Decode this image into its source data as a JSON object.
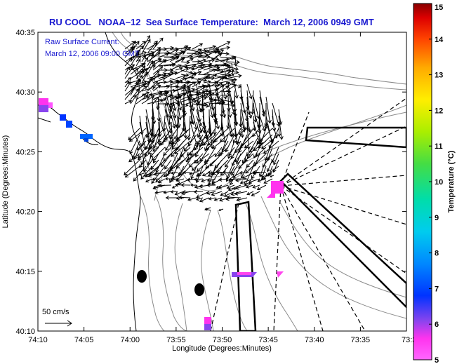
{
  "title": "RU COOL   NOAA–12  Sea Surface Temperature:  March 12, 2006 0949 GMT",
  "inset": {
    "line1": "Raw Surface Current:",
    "line2": "March 12, 2006 09:00 GMT"
  },
  "axes": {
    "xlabel": "Longitude (Degrees:Minutes)",
    "ylabel": "Latitude (Degrees:Minutes)",
    "x_ticks": [
      "74:10",
      "74:05",
      "74:00",
      "73:55",
      "73:50",
      "73:45",
      "73:40",
      "73:35",
      "73:3"
    ],
    "y_ticks": [
      "40:35",
      "40:30",
      "40:25",
      "40:20",
      "40:15",
      "40:10"
    ]
  },
  "scale_bar": {
    "label": "50 cm/s"
  },
  "colorbar": {
    "label": "Temperature (°C)",
    "min": 5,
    "max": 15,
    "ticks": [
      "5",
      "6",
      "7",
      "8",
      "9",
      "10",
      "11",
      "12",
      "13",
      "14",
      "15"
    ],
    "colors": [
      "#ff55ff",
      "#ff33ee",
      "#8844ee",
      "#0033ff",
      "#0088ff",
      "#00ccee",
      "#00ddaa",
      "#44dd44",
      "#aaee00",
      "#ffee00",
      "#ffaa00",
      "#ff5500",
      "#ee0000",
      "#990000"
    ]
  },
  "colors": {
    "title": "#1a1ad0",
    "land": "#ffffff",
    "bathymetry": "#888888",
    "coast": "#000000"
  }
}
